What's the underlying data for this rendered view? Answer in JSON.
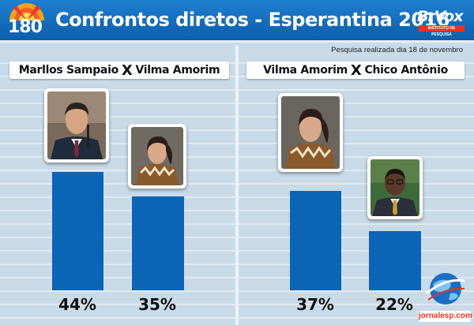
{
  "header": {
    "logo_text": "180",
    "title": "Confrontos diretos - Esperantina 2016",
    "brand": "BrVox",
    "brand_sub": "INSTITUTO DE PESQUISA"
  },
  "note": "Pesquisa realizada dia 18 de novembro",
  "footer": {
    "site": "jornalesp.com"
  },
  "colors": {
    "bar": "#0c64b7",
    "header": "#1a74c4",
    "background": "#c9dbe8"
  },
  "chart_data": [
    {
      "type": "bar",
      "title": "Marllos Sampaio X Vilma Amorim",
      "candidates": [
        "Marllos Sampaio",
        "Vilma Amorim"
      ],
      "categories": [
        "Marllos Sampaio",
        "Vilma Amorim"
      ],
      "values": [
        44,
        35
      ],
      "value_labels": [
        "44%",
        "35%"
      ],
      "unit": "%",
      "ylim": [
        0,
        75
      ],
      "grid": true
    },
    {
      "type": "bar",
      "title": "Vilma Amorim X Chico Antônio",
      "candidates": [
        "Vilma Amorim",
        "Chico Antônio"
      ],
      "categories": [
        "Vilma Amorim",
        "Chico Antônio"
      ],
      "values": [
        37,
        22
      ],
      "value_labels": [
        "37%",
        "22%"
      ],
      "unit": "%",
      "ylim": [
        0,
        75
      ],
      "grid": true
    }
  ]
}
